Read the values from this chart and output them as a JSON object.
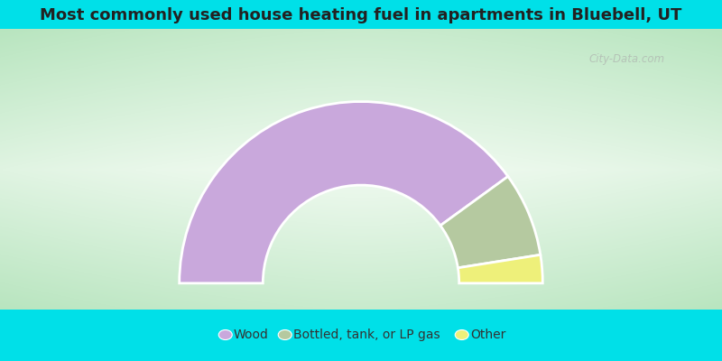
{
  "title": "Most commonly used house heating fuel in apartments in Bluebell, UT",
  "segments": [
    {
      "label": "Wood",
      "value": 80,
      "color": "#c9a8dc"
    },
    {
      "label": "Bottled, tank, or LP gas",
      "value": 15,
      "color": "#b5c9a0"
    },
    {
      "label": "Other",
      "value": 5,
      "color": "#eef07a"
    }
  ],
  "background_top_color": "#00e0e8",
  "background_mid_color": "#d8f0d8",
  "background_bottom_color": "#00e0e8",
  "title_fontsize": 13,
  "donut_inner_ratio": 0.54,
  "watermark": "City-Data.com",
  "legend_fontsize": 10
}
